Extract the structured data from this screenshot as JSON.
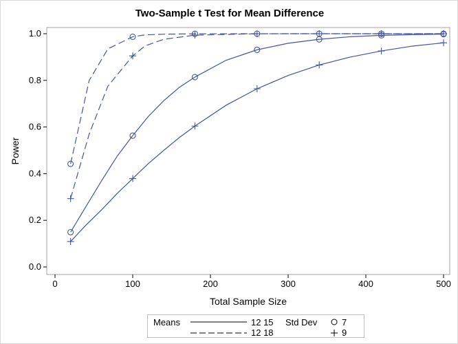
{
  "chart_data": {
    "type": "line",
    "title": "Two-Sample t Test for Mean Difference",
    "xlabel": "Total Sample Size",
    "ylabel": "Power",
    "xlim": [
      0,
      500
    ],
    "ylim": [
      0.0,
      1.0
    ],
    "xticks": [
      "0",
      "100",
      "200",
      "300",
      "400",
      "500"
    ],
    "yticks": [
      "0.0",
      "0.2",
      "0.4",
      "0.6",
      "0.8",
      "1.0"
    ],
    "grid": false,
    "color": "#44549a",
    "marker_x": [
      20,
      100,
      180,
      260,
      340,
      420,
      500
    ],
    "series": [
      {
        "means": "12 15",
        "std_dev": "7",
        "line": "solid",
        "marker": "circle",
        "x": [
          20,
          40,
          60,
          80,
          100,
          120,
          140,
          160,
          180,
          220,
          260,
          300,
          340,
          380,
          420,
          460,
          500
        ],
        "y": [
          0.149,
          0.26,
          0.37,
          0.475,
          0.563,
          0.645,
          0.713,
          0.77,
          0.814,
          0.886,
          0.931,
          0.959,
          0.976,
          0.987,
          0.993,
          0.996,
          0.998
        ]
      },
      {
        "means": "12 15",
        "std_dev": "9",
        "line": "solid",
        "marker": "plus",
        "x": [
          20,
          40,
          60,
          80,
          100,
          120,
          140,
          160,
          180,
          220,
          260,
          300,
          340,
          380,
          420,
          460,
          500
        ],
        "y": [
          0.109,
          0.18,
          0.245,
          0.315,
          0.379,
          0.443,
          0.5,
          0.555,
          0.604,
          0.693,
          0.764,
          0.821,
          0.866,
          0.9,
          0.926,
          0.947,
          0.961
        ]
      },
      {
        "means": "12 18",
        "std_dev": "7",
        "line": "dashed",
        "marker": "circle",
        "x": [
          20,
          44,
          68,
          100,
          116,
          140,
          180,
          260,
          340,
          420,
          500
        ],
        "y": [
          0.442,
          0.8,
          0.935,
          0.987,
          0.995,
          0.998,
          0.9997,
          1.0,
          1.0,
          1.0,
          1.0
        ]
      },
      {
        "means": "12 18",
        "std_dev": "9",
        "line": "dashed",
        "marker": "plus",
        "x": [
          20,
          44,
          68,
          100,
          116,
          140,
          180,
          260,
          340,
          420,
          500
        ],
        "y": [
          0.293,
          0.57,
          0.775,
          0.905,
          0.948,
          0.976,
          0.994,
          0.9998,
          1.0,
          1.0,
          1.0
        ]
      }
    ],
    "legend": {
      "position": "bottom",
      "means_label": "Means",
      "means": [
        {
          "label": "12 15",
          "line": "solid"
        },
        {
          "label": "12 18",
          "line": "dashed"
        }
      ],
      "std_label": "Std Dev",
      "std": [
        {
          "label": "7",
          "marker": "circle"
        },
        {
          "label": "9",
          "marker": "plus"
        }
      ]
    }
  }
}
